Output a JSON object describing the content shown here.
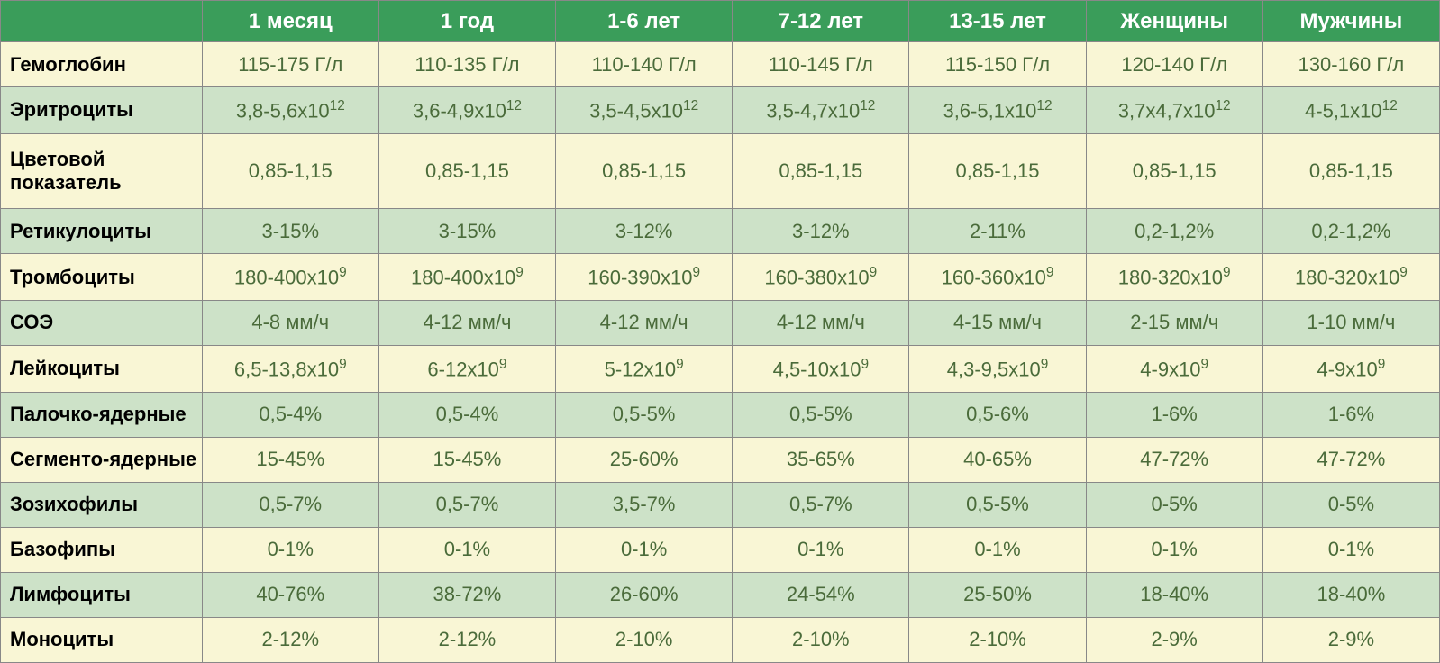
{
  "table": {
    "header_bg": "#3a9d5a",
    "header_fg": "#ffffff",
    "light_row_bg": "#f9f6d5",
    "dark_row_bg": "#cde2c8",
    "value_color": "#4a6b3a",
    "label_color": "#000000",
    "columns": [
      "",
      "1 месяц",
      "1 год",
      "1-6 лет",
      "7-12 лет",
      "13-15 лет",
      "Женщины",
      "Мужчины"
    ],
    "rows": [
      {
        "label": "Гемоглобин",
        "shade": "light",
        "values": [
          "115-175 Г/л",
          "110-135 Г/л",
          "110-140 Г/л",
          "110-145 Г/л",
          "115-150 Г/л",
          "120-140 Г/л",
          "130-160 Г/л"
        ]
      },
      {
        "label": "Эритроциты",
        "shade": "dark",
        "values_html": [
          "3,8-5,6x10<sup>12</sup>",
          "3,6-4,9x10<sup>12</sup>",
          "3,5-4,5x10<sup>12</sup>",
          "3,5-4,7x10<sup>12</sup>",
          "3,6-5,1x10<sup>12</sup>",
          "3,7x4,7x10<sup>12</sup>",
          "4-5,1x10<sup>12</sup>"
        ]
      },
      {
        "label": "Цветовой показатель",
        "shade": "light",
        "values": [
          "0,85-1,15",
          "0,85-1,15",
          "0,85-1,15",
          "0,85-1,15",
          "0,85-1,15",
          "0,85-1,15",
          "0,85-1,15"
        ]
      },
      {
        "label": "Ретикулоциты",
        "shade": "dark",
        "values": [
          "3-15%",
          "3-15%",
          "3-12%",
          "3-12%",
          "2-11%",
          "0,2-1,2%",
          "0,2-1,2%"
        ]
      },
      {
        "label": "Тромбоциты",
        "shade": "light",
        "values_html": [
          "180-400x10<sup>9</sup>",
          "180-400x10<sup>9</sup>",
          "160-390x10<sup>9</sup>",
          "160-380x10<sup>9</sup>",
          "160-360x10<sup>9</sup>",
          "180-320x10<sup>9</sup>",
          "180-320x10<sup>9</sup>"
        ]
      },
      {
        "label": "СОЭ",
        "shade": "dark",
        "values": [
          "4-8 мм/ч",
          "4-12 мм/ч",
          "4-12 мм/ч",
          "4-12 мм/ч",
          "4-15 мм/ч",
          "2-15 мм/ч",
          "1-10 мм/ч"
        ]
      },
      {
        "label": "Лейкоциты",
        "shade": "light",
        "values_html": [
          "6,5-13,8x10<sup>9</sup>",
          "6-12x10<sup>9</sup>",
          "5-12x10<sup>9</sup>",
          "4,5-10x10<sup>9</sup>",
          "4,3-9,5x10<sup>9</sup>",
          "4-9x10<sup>9</sup>",
          "4-9x10<sup>9</sup>"
        ]
      },
      {
        "label": "Палочко-ядерные",
        "shade": "dark",
        "values": [
          "0,5-4%",
          "0,5-4%",
          "0,5-5%",
          "0,5-5%",
          "0,5-6%",
          "1-6%",
          "1-6%"
        ]
      },
      {
        "label": "Сегменто-ядерные",
        "shade": "light",
        "values": [
          "15-45%",
          "15-45%",
          "25-60%",
          "35-65%",
          "40-65%",
          "47-72%",
          "47-72%"
        ]
      },
      {
        "label": "Зозихофилы",
        "shade": "dark",
        "values": [
          "0,5-7%",
          "0,5-7%",
          "3,5-7%",
          "0,5-7%",
          "0,5-5%",
          "0-5%",
          "0-5%"
        ]
      },
      {
        "label": "Базофипы",
        "shade": "light",
        "values": [
          "0-1%",
          "0-1%",
          "0-1%",
          "0-1%",
          "0-1%",
          "0-1%",
          "0-1%"
        ]
      },
      {
        "label": "Лимфоциты",
        "shade": "dark",
        "values": [
          "40-76%",
          "38-72%",
          "26-60%",
          "24-54%",
          "25-50%",
          "18-40%",
          "18-40%"
        ]
      },
      {
        "label": "Моноциты",
        "shade": "light",
        "values": [
          "2-12%",
          "2-12%",
          "2-10%",
          "2-10%",
          "2-10%",
          "2-9%",
          "2-9%"
        ]
      }
    ]
  }
}
